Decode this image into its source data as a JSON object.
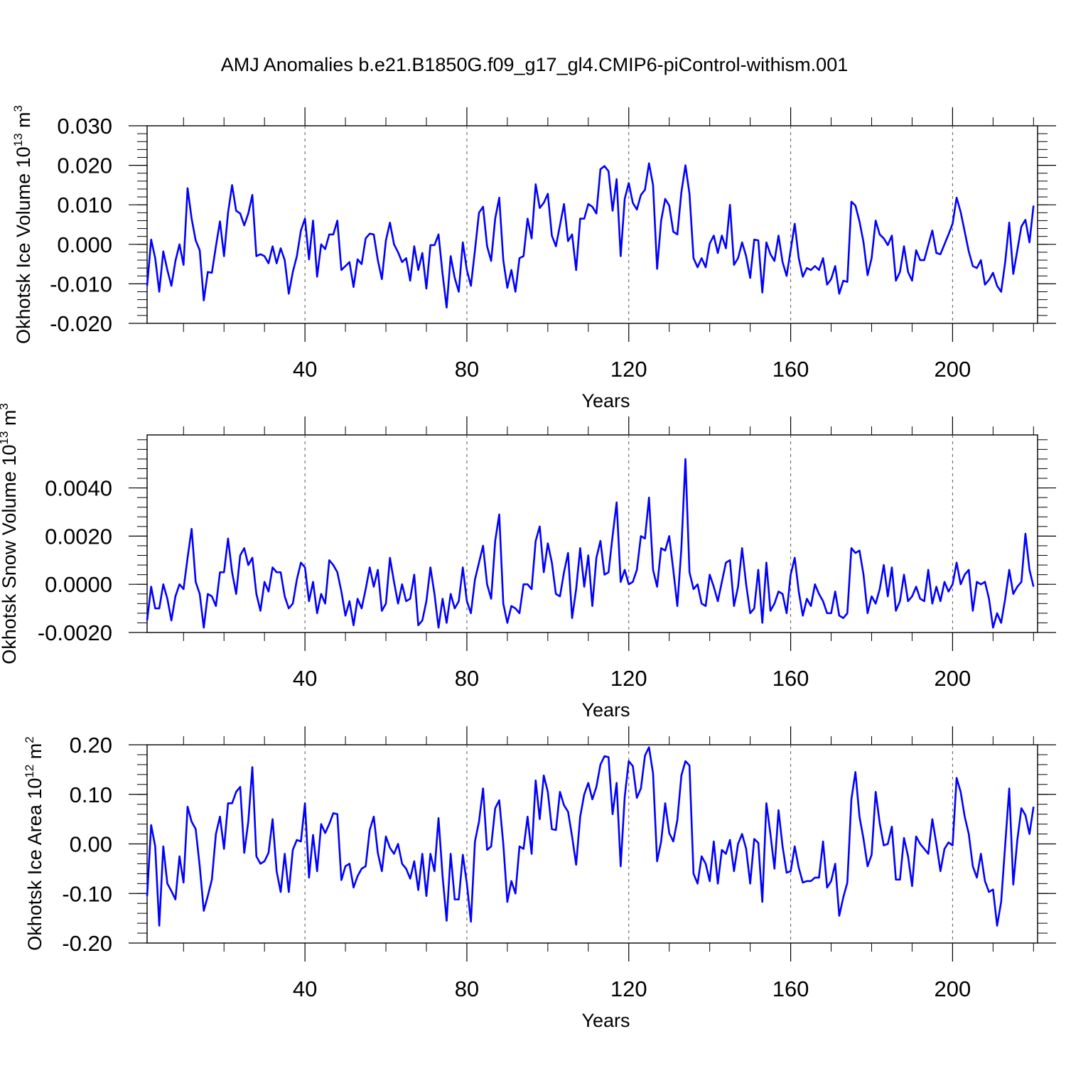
{
  "figure": {
    "title": "AMJ Anomalies b.e21.B1850G.f09_g17_gl4.CMIP6-piControl-withism.001"
  },
  "colors": {
    "series": "#0000ff",
    "axis": "#000000",
    "grid": "#555555",
    "background": "#ffffff"
  },
  "chart_data": [
    {
      "type": "line",
      "title": "",
      "xlabel": "Years",
      "ylabel": "Okhotsk Ice Volume 10",
      "ylabel_exp": "13",
      "ylabel_unit": " m",
      "ylabel_unit_exp": "3",
      "xlim": [
        1,
        221
      ],
      "ylim": [
        -0.02,
        0.03
      ],
      "x_ticks": [
        40,
        80,
        120,
        160,
        200
      ],
      "x_tick_labels": [
        "40",
        "80",
        "120",
        "160",
        "200"
      ],
      "y_ticks": [
        -0.02,
        -0.01,
        0.0,
        0.01,
        0.02,
        0.03
      ],
      "y_tick_labels": [
        "-0.020",
        "-0.010",
        "0.000",
        "0.010",
        "0.020",
        "0.030"
      ],
      "y_minor_step": 0.002,
      "grid_x": true,
      "series": [
        {
          "name": "Okhotsk Ice Volume",
          "values": [
            -0.0105,
            0.0012,
            -0.0035,
            -0.012,
            -0.0018,
            -0.0065,
            -0.0105,
            -0.0042,
            0.0,
            -0.0052,
            0.0142,
            0.0065,
            0.001,
            -0.0015,
            -0.0142,
            -0.007,
            -0.0072,
            -0.0005,
            0.0058,
            -0.003,
            0.008,
            0.015,
            0.0085,
            0.0078,
            0.0048,
            0.0078,
            0.0125,
            -0.003,
            -0.0025,
            -0.003,
            -0.0048,
            -0.0005,
            -0.0048,
            -0.001,
            -0.004,
            -0.0125,
            -0.007,
            -0.003,
            0.0035,
            0.0065,
            -0.0038,
            0.006,
            -0.0082,
            0.0,
            -0.0012,
            0.0025,
            0.0025,
            0.006,
            -0.0065,
            -0.0055,
            -0.0045,
            -0.0108,
            -0.0038,
            -0.005,
            0.0015,
            0.0027,
            0.0025,
            -0.004,
            -0.0088,
            0.001,
            0.0055,
            0.0,
            -0.002,
            -0.0045,
            -0.0035,
            -0.0092,
            -0.0005,
            -0.0065,
            -0.0022,
            -0.0112,
            -0.0002,
            -0.0002,
            0.0025,
            -0.0075,
            -0.016,
            -0.003,
            -0.0085,
            -0.012,
            0.0005,
            -0.0065,
            -0.0105,
            -0.0015,
            0.008,
            0.0095,
            -0.0005,
            -0.0042,
            0.0065,
            0.0118,
            -0.004,
            -0.011,
            -0.0065,
            -0.012,
            -0.0035,
            -0.003,
            0.0065,
            0.0015,
            0.0152,
            0.0092,
            0.0105,
            0.0128,
            0.0022,
            -0.0005,
            0.0048,
            0.0102,
            0.0008,
            0.0025,
            -0.0065,
            0.0065,
            0.0065,
            0.0102,
            0.0095,
            0.0078,
            0.019,
            0.0198,
            0.0185,
            0.0085,
            0.0165,
            -0.003,
            0.0115,
            0.0155,
            0.0105,
            0.0088,
            0.0125,
            0.0138,
            0.0205,
            0.015,
            -0.0062,
            0.006,
            0.0115,
            0.0098,
            0.0032,
            0.0025,
            0.0132,
            0.02,
            0.0128,
            -0.0035,
            -0.0058,
            -0.0035,
            -0.0058,
            0.0002,
            0.0022,
            -0.0022,
            0.0022,
            -0.001,
            0.01,
            -0.0052,
            -0.0035,
            0.0005,
            -0.003,
            -0.0085,
            0.0012,
            0.001,
            -0.0122,
            0.0005,
            -0.0025,
            -0.0042,
            0.0022,
            -0.0045,
            -0.008,
            -0.0015,
            0.0052,
            -0.0035,
            -0.0082,
            -0.006,
            -0.0065,
            -0.0055,
            -0.0065,
            -0.0035,
            -0.0102,
            -0.0088,
            -0.0055,
            -0.0125,
            -0.0092,
            -0.0095,
            0.0108,
            0.0098,
            0.0058,
            0.0005,
            -0.0078,
            -0.0035,
            0.006,
            0.0025,
            0.0015,
            -0.0002,
            0.0022,
            -0.0092,
            -0.007,
            -0.0005,
            -0.007,
            -0.0092,
            -0.0015,
            -0.004,
            -0.004,
            -0.0002,
            0.0035,
            -0.0022,
            -0.0025,
            0.0,
            0.0025,
            0.0052,
            0.0118,
            0.0082,
            0.0032,
            -0.0018,
            -0.0055,
            -0.006,
            -0.004,
            -0.0102,
            -0.009,
            -0.0072,
            -0.0105,
            -0.012,
            -0.0045,
            0.0055,
            -0.0075,
            -0.0015,
            0.0045,
            0.0062,
            0.0005,
            0.0098
          ]
        }
      ]
    },
    {
      "type": "line",
      "title": "",
      "xlabel": "Years",
      "ylabel": "Okhotsk Snow Volume 10",
      "ylabel_exp": "13",
      "ylabel_unit": " m",
      "ylabel_unit_exp": "3",
      "xlim": [
        1,
        221
      ],
      "ylim": [
        -0.002,
        0.0062
      ],
      "x_ticks": [
        40,
        80,
        120,
        160,
        200
      ],
      "x_tick_labels": [
        "40",
        "80",
        "120",
        "160",
        "200"
      ],
      "y_ticks": [
        -0.002,
        0.0,
        0.002,
        0.004
      ],
      "y_tick_labels": [
        "-0.0020",
        "0.0000",
        "0.0020",
        "0.0040"
      ],
      "y_minor_step": 0.0004,
      "grid_x": true,
      "series": [
        {
          "name": "Okhotsk Snow Volume",
          "values": [
            -0.0015,
            -0.0001,
            -0.001,
            -0.001,
            0.0,
            -0.0006,
            -0.0015,
            -0.0005,
            0.0,
            -0.0002,
            0.0011,
            0.0023,
            0.0001,
            -0.0004,
            -0.0018,
            -0.0004,
            -0.0005,
            -0.0009,
            0.0005,
            0.0005,
            0.0019,
            0.0005,
            -0.0004,
            0.0012,
            0.0015,
            0.0008,
            0.0011,
            -0.0004,
            -0.0011,
            0.0001,
            -0.0003,
            0.0007,
            0.0005,
            0.0005,
            -0.0005,
            -0.001,
            -0.0008,
            0.0002,
            0.0009,
            0.0007,
            -0.0007,
            0.0001,
            -0.0012,
            -0.0004,
            -0.0008,
            0.001,
            0.0008,
            0.0005,
            -0.0003,
            -0.0013,
            -0.0007,
            -0.0017,
            -0.0006,
            -0.001,
            -0.0002,
            0.0007,
            -0.0001,
            0.0006,
            -0.0011,
            -0.0008,
            0.0011,
            0.0001,
            -0.0008,
            0.0,
            -0.0007,
            -0.0006,
            0.0004,
            -0.0017,
            -0.0015,
            -0.0007,
            0.0007,
            -0.0004,
            -0.0018,
            -0.0006,
            -0.0016,
            -0.0004,
            -0.001,
            -0.0007,
            0.0007,
            -0.0007,
            -0.0012,
            0.0002,
            0.0009,
            0.0016,
            0.0,
            -0.0006,
            0.0018,
            0.0029,
            -0.0008,
            -0.0016,
            -0.0009,
            -0.001,
            -0.0012,
            0.0,
            0.0,
            -0.0002,
            0.0018,
            0.0024,
            0.0005,
            0.0017,
            0.0009,
            -0.0004,
            -0.0005,
            0.0005,
            0.0013,
            -0.0014,
            -0.0002,
            0.0015,
            -0.0001,
            0.0012,
            -0.0009,
            0.0011,
            0.0018,
            0.0004,
            0.0005,
            0.002,
            0.0034,
            0.0001,
            0.0006,
            0.0,
            0.0001,
            0.0006,
            0.002,
            0.0019,
            0.0036,
            0.0006,
            -0.0001,
            0.0015,
            0.0014,
            0.002,
            0.0006,
            -0.0009,
            0.0015,
            0.0052,
            0.0005,
            -0.0002,
            0.0,
            -0.0008,
            -0.0009,
            0.0004,
            -0.0001,
            -0.0007,
            0.0001,
            0.0009,
            0.001,
            -0.0009,
            -0.0001,
            0.0015,
            0.0,
            -0.0012,
            -0.001,
            0.0006,
            -0.0016,
            0.0009,
            -0.0011,
            -0.0008,
            -0.0003,
            -0.0004,
            -0.0012,
            0.0004,
            0.0011,
            -0.0003,
            -0.0013,
            -0.0006,
            -0.0009,
            0.0,
            -0.0004,
            -0.0007,
            -0.0012,
            -0.0012,
            -0.0003,
            -0.0013,
            -0.0014,
            -0.0012,
            0.0015,
            0.0013,
            0.0014,
            0.0004,
            -0.0012,
            -0.0005,
            -0.0008,
            -0.0002,
            0.0008,
            -0.0005,
            0.0007,
            -0.0011,
            -0.0007,
            0.0004,
            -0.0007,
            -0.0005,
            -0.0001,
            -0.0006,
            -0.0007,
            0.0006,
            -0.0008,
            -0.0001,
            -0.0007,
            0.0001,
            -0.0003,
            0.0,
            0.0009,
            0.0,
            0.0004,
            0.0006,
            -0.0011,
            0.0001,
            0.0,
            0.0001,
            -0.0006,
            -0.0018,
            -0.0012,
            -0.0016,
            -0.0006,
            0.0006,
            -0.0004,
            -0.0001,
            0.0001,
            0.0021,
            0.0006,
            -0.0001
          ]
        }
      ]
    },
    {
      "type": "line",
      "title": "",
      "xlabel": "Years",
      "ylabel": "Okhotsk Ice Area 10",
      "ylabel_exp": "12",
      "ylabel_unit": " m",
      "ylabel_unit_exp": "2",
      "xlim": [
        1,
        221
      ],
      "ylim": [
        -0.2,
        0.2
      ],
      "x_ticks": [
        40,
        80,
        120,
        160,
        200
      ],
      "x_tick_labels": [
        "40",
        "80",
        "120",
        "160",
        "200"
      ],
      "y_ticks": [
        -0.2,
        -0.1,
        0.0,
        0.1,
        0.2
      ],
      "y_tick_labels": [
        "-0.20",
        "-0.10",
        "0.00",
        "0.10",
        "0.20"
      ],
      "y_minor_step": 0.02,
      "grid_x": true,
      "series": [
        {
          "name": "Okhotsk Ice Area",
          "values": [
            -0.105,
            0.038,
            -0.005,
            -0.165,
            -0.005,
            -0.08,
            -0.095,
            -0.112,
            -0.025,
            -0.078,
            0.075,
            0.045,
            0.03,
            -0.045,
            -0.135,
            -0.105,
            -0.072,
            0.02,
            0.055,
            -0.01,
            0.082,
            0.082,
            0.105,
            0.115,
            -0.018,
            0.045,
            0.155,
            -0.025,
            -0.04,
            -0.035,
            -0.018,
            0.05,
            -0.055,
            -0.097,
            -0.02,
            -0.097,
            -0.012,
            0.008,
            0.005,
            0.082,
            -0.068,
            0.018,
            -0.055,
            0.04,
            0.022,
            0.04,
            0.062,
            0.06,
            -0.073,
            -0.045,
            -0.04,
            -0.088,
            -0.065,
            -0.05,
            -0.045,
            0.028,
            0.055,
            -0.018,
            -0.055,
            0.015,
            -0.008,
            -0.02,
            0.0,
            -0.04,
            -0.05,
            -0.07,
            -0.035,
            -0.093,
            -0.02,
            -0.105,
            -0.02,
            -0.055,
            0.052,
            -0.065,
            -0.155,
            -0.02,
            -0.112,
            -0.112,
            -0.022,
            -0.08,
            -0.157,
            0.005,
            0.045,
            0.112,
            -0.012,
            -0.005,
            0.072,
            0.088,
            0.0,
            -0.117,
            -0.075,
            -0.1,
            -0.005,
            -0.01,
            0.055,
            -0.02,
            0.128,
            0.05,
            0.138,
            0.105,
            0.03,
            0.028,
            0.105,
            0.078,
            0.065,
            0.015,
            -0.042,
            0.055,
            0.1,
            0.123,
            0.09,
            0.115,
            0.16,
            0.177,
            0.175,
            0.06,
            0.123,
            -0.045,
            0.095,
            0.167,
            0.157,
            0.093,
            0.112,
            0.178,
            0.195,
            0.142,
            -0.035,
            0.005,
            0.082,
            0.022,
            0.005,
            0.048,
            0.138,
            0.167,
            0.158,
            -0.06,
            -0.08,
            -0.025,
            -0.04,
            -0.075,
            0.005,
            -0.08,
            -0.012,
            -0.02,
            0.008,
            -0.055,
            0.0,
            0.02,
            -0.01,
            -0.08,
            0.01,
            0.002,
            -0.117,
            0.082,
            0.02,
            -0.05,
            0.068,
            -0.005,
            -0.058,
            -0.055,
            -0.005,
            -0.048,
            -0.078,
            -0.075,
            -0.075,
            -0.068,
            -0.068,
            0.005,
            -0.088,
            -0.075,
            -0.04,
            -0.145,
            -0.108,
            -0.078,
            0.09,
            0.145,
            0.055,
            0.01,
            -0.045,
            -0.022,
            0.105,
            0.042,
            -0.003,
            0.0,
            0.035,
            -0.072,
            -0.072,
            0.012,
            -0.025,
            -0.085,
            0.015,
            0.0,
            -0.01,
            -0.02,
            0.05,
            0.0,
            -0.055,
            -0.01,
            0.003,
            -0.003,
            0.133,
            0.105,
            0.055,
            0.02,
            -0.045,
            -0.068,
            -0.02,
            -0.075,
            -0.097,
            -0.092,
            -0.165,
            -0.117,
            -0.002,
            0.112,
            -0.082,
            0.008,
            0.072,
            0.058,
            0.02,
            0.075
          ]
        }
      ]
    }
  ]
}
